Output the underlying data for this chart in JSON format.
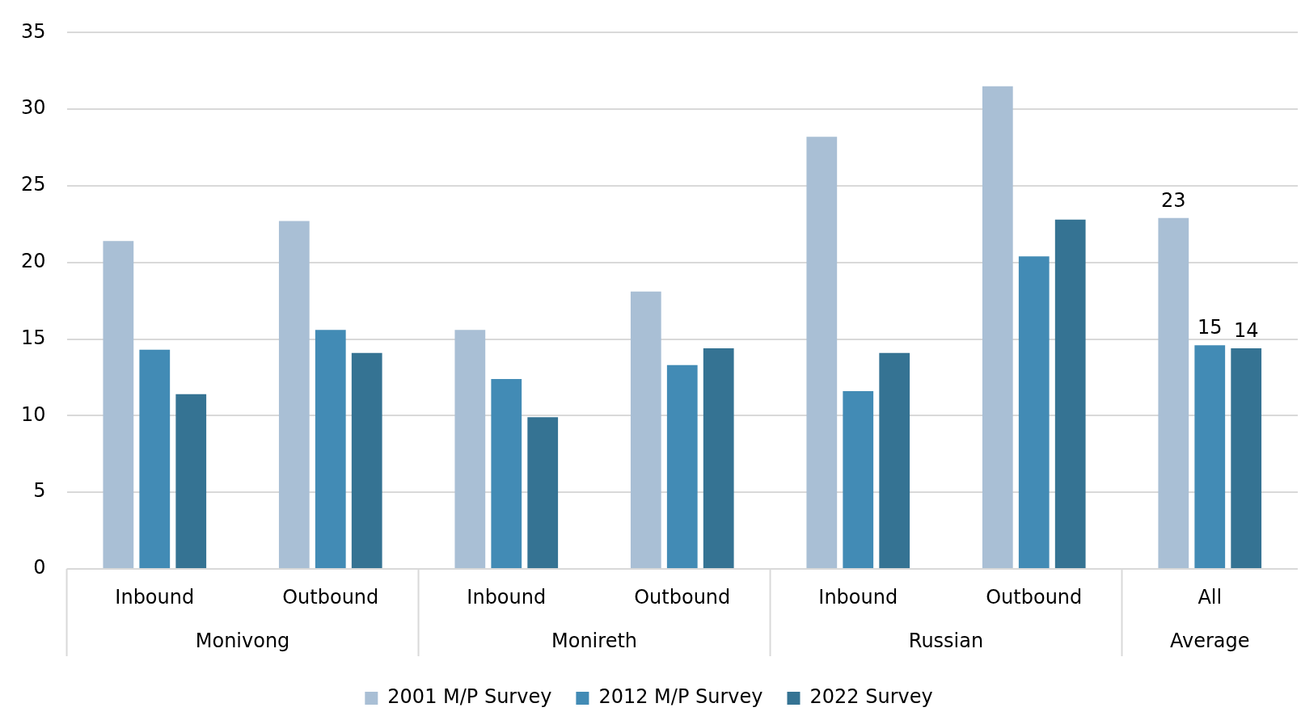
{
  "chart_data": {
    "type": "bar",
    "categories": [
      "Inbound",
      "Outbound",
      "Inbound",
      "Outbound",
      "Inbound",
      "Outbound",
      "All"
    ],
    "annotations": [
      "Monivong",
      "Monireth",
      "Russian",
      "Average"
    ],
    "series": [
      {
        "name": "2001 M/P Survey",
        "color": "#a9bfd5",
        "values": [
          21.4,
          22.7,
          15.6,
          18.1,
          28.2,
          31.5,
          22.9
        ],
        "value_labels": [
          null,
          null,
          null,
          null,
          null,
          null,
          "23"
        ]
      },
      {
        "name": "2012 M/P Survey",
        "color": "#428bb5",
        "values": [
          14.3,
          15.6,
          12.4,
          13.3,
          11.6,
          20.4,
          14.6
        ],
        "value_labels": [
          null,
          null,
          null,
          null,
          null,
          null,
          "15"
        ]
      },
      {
        "name": "2022 Survey",
        "color": "#357393",
        "values": [
          11.4,
          14.1,
          9.9,
          14.4,
          14.1,
          22.8,
          14.4
        ],
        "value_labels": [
          null,
          null,
          null,
          null,
          null,
          null,
          "14"
        ]
      }
    ],
    "ylim": [
      0,
      35
    ],
    "yticks": [
      0,
      5,
      10,
      15,
      20,
      25,
      30,
      35
    ],
    "grid": "y",
    "legend": "bottom"
  }
}
